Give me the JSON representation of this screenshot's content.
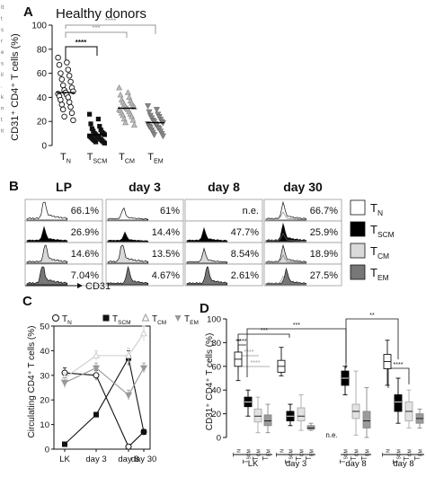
{
  "margin_text": [
    "It",
    "t",
    "s",
    "r",
    "e",
    "s",
    "il",
    ".",
    "k",
    "n",
    "t",
    "it"
  ],
  "panelA": {
    "letter": "A",
    "title": "Healthy donors",
    "ylabel": "CD31⁺ CD4⁺ T cells (%)",
    "yticks": [
      "0",
      "20",
      "40",
      "60",
      "80",
      "100"
    ],
    "sig": [
      {
        "label": "****",
        "color": "#000000"
      },
      {
        "label": "***",
        "color": "#999999"
      },
      {
        "label": "****",
        "color": "#999999"
      }
    ],
    "xlabels": [
      {
        "main": "T",
        "sub": "N"
      },
      {
        "main": "T",
        "sub": "SCM"
      },
      {
        "main": "T",
        "sub": "CM"
      },
      {
        "main": "T",
        "sub": "EM"
      }
    ]
  },
  "panelB": {
    "letter": "B",
    "columns": [
      "LP",
      "day 3",
      "day 8",
      "day 30"
    ],
    "percentages": [
      [
        "66.1%",
        "61%",
        "n.e.",
        "66.7%"
      ],
      [
        "26.9%",
        "14.4%",
        "47.7%",
        "25.9%"
      ],
      [
        "14.6%",
        "13.5%",
        "8.54%",
        "18.9%"
      ],
      [
        "7.04%",
        "4.67%",
        "2.61%",
        "27.5%"
      ]
    ],
    "xlabel": "CD31",
    "legend": [
      {
        "main": "T",
        "sub": "N",
        "fill": "#ffffff"
      },
      {
        "main": "T",
        "sub": "SCM",
        "fill": "#000000"
      },
      {
        "main": "T",
        "sub": "CM",
        "fill": "#d9d9d9"
      },
      {
        "main": "T",
        "sub": "EM",
        "fill": "#777777"
      }
    ]
  },
  "panelC": {
    "letter": "C",
    "ylabel": "Circulating CD4⁺ T cells (%)",
    "yticks": [
      "0",
      "10",
      "20",
      "30",
      "40",
      "50"
    ],
    "xticks": [
      "LK",
      "day 3",
      "day 8",
      "day 30"
    ],
    "legend": [
      {
        "main": "T",
        "sub": "N"
      },
      {
        "main": "T",
        "sub": "SCM"
      },
      {
        "main": "T",
        "sub": "CM"
      },
      {
        "main": "T",
        "sub": "EM"
      }
    ]
  },
  "panelD": {
    "letter": "D",
    "ylabel": "CD31⁺ CD4⁺ T cells (%)",
    "yticks": [
      "0",
      "20",
      "40",
      "60",
      "80",
      "100"
    ],
    "groups": [
      "LK",
      "day 3",
      "day 8",
      "day 8"
    ],
    "ne_label": "n.e.",
    "sig_labels": [
      "****",
      "****",
      "****",
      "***",
      "***",
      "**",
      "****"
    ],
    "sub_labels": [
      {
        "main": "T",
        "sub": "N"
      },
      {
        "main": "T",
        "sub": "SCM"
      },
      {
        "main": "T",
        "sub": "CM"
      },
      {
        "main": "T",
        "sub": "EM"
      }
    ]
  },
  "chart_data": [
    {
      "type": "scatter",
      "title": "Healthy donors",
      "ylabel": "CD31⁺ CD4⁺ T cells (%)",
      "categories": [
        "TN",
        "TSCM",
        "TCM",
        "TEM"
      ],
      "ylim": [
        0,
        100
      ],
      "means": [
        44,
        9,
        31,
        19
      ],
      "series": [
        {
          "name": "TN",
          "values": [
            73,
            69,
            67,
            63,
            60,
            58,
            55,
            53,
            50,
            48,
            46,
            45,
            44,
            43,
            42,
            41,
            40,
            38,
            36,
            34,
            32,
            30,
            27,
            24,
            21
          ]
        },
        {
          "name": "TSCM",
          "values": [
            26,
            22,
            18,
            16,
            14,
            13,
            12,
            11,
            10,
            10,
            9,
            9,
            8,
            8,
            7,
            7,
            6,
            6,
            5,
            5,
            4,
            4,
            3,
            3,
            2
          ]
        },
        {
          "name": "TCM",
          "values": [
            48,
            44,
            42,
            40,
            38,
            37,
            36,
            35,
            34,
            33,
            32,
            32,
            31,
            30,
            30,
            29,
            28,
            27,
            26,
            25,
            24,
            22,
            21,
            19,
            17
          ]
        },
        {
          "name": "TEM",
          "values": [
            33,
            30,
            28,
            26,
            25,
            24,
            23,
            22,
            21,
            20,
            20,
            19,
            18,
            18,
            17,
            16,
            15,
            15,
            14,
            13,
            12,
            11,
            10,
            9,
            8
          ]
        }
      ]
    },
    {
      "type": "line",
      "ylabel": "Circulating CD4⁺ T cells (%)",
      "categories": [
        "LK",
        "day 3",
        "day 8",
        "day 30"
      ],
      "ylim": [
        0,
        50
      ],
      "series": [
        {
          "name": "TN",
          "values": [
            31,
            30,
            1,
            7
          ],
          "errors": [
            2,
            2,
            1,
            1
          ]
        },
        {
          "name": "TSCM",
          "values": [
            2,
            14,
            37,
            7
          ],
          "errors": [
            0.5,
            1,
            3,
            1
          ]
        },
        {
          "name": "TCM",
          "values": [
            29,
            38,
            38,
            47
          ],
          "errors": [
            2,
            2,
            3,
            3
          ]
        },
        {
          "name": "TEM",
          "values": [
            27,
            33,
            22,
            33
          ],
          "errors": [
            2,
            2,
            2,
            2
          ]
        }
      ]
    },
    {
      "type": "box",
      "ylabel": "CD31⁺ CD4⁺ T cells (%)",
      "ylim": [
        0,
        100
      ],
      "groups": [
        "LK",
        "day 3",
        "day 8",
        "day 8"
      ],
      "boxes": [
        {
          "group": 0,
          "subset": "TN",
          "stats": [
            48,
            60,
            66,
            72,
            82
          ]
        },
        {
          "group": 0,
          "subset": "TSCM",
          "stats": [
            18,
            26,
            30,
            34,
            40
          ]
        },
        {
          "group": 0,
          "subset": "TCM",
          "stats": [
            4,
            13,
            18,
            24,
            34
          ]
        },
        {
          "group": 0,
          "subset": "TEM",
          "stats": [
            4,
            10,
            14,
            19,
            28
          ]
        },
        {
          "group": 1,
          "subset": "TN",
          "stats": [
            52,
            55,
            60,
            65,
            76
          ]
        },
        {
          "group": 1,
          "subset": "TSCM",
          "stats": [
            10,
            14,
            18,
            22,
            28
          ]
        },
        {
          "group": 1,
          "subset": "TCM",
          "stats": [
            6,
            14,
            18,
            25,
            36
          ]
        },
        {
          "group": 1,
          "subset": "TEM",
          "stats": [
            6,
            7,
            8,
            10,
            12
          ]
        },
        {
          "group": 2,
          "subset": "TSCM",
          "stats": [
            36,
            44,
            50,
            56,
            60
          ]
        },
        {
          "group": 2,
          "subset": "TCM",
          "stats": [
            2,
            16,
            22,
            28,
            56
          ]
        },
        {
          "group": 2,
          "subset": "TEM",
          "stats": [
            0,
            8,
            14,
            22,
            42
          ]
        },
        {
          "group": 3,
          "subset": "TN",
          "stats": [
            44,
            58,
            64,
            70,
            82
          ]
        },
        {
          "group": 3,
          "subset": "TSCM",
          "stats": [
            12,
            22,
            30,
            36,
            50
          ]
        },
        {
          "group": 3,
          "subset": "TCM",
          "stats": [
            8,
            14,
            22,
            30,
            40
          ]
        },
        {
          "group": 3,
          "subset": "TEM",
          "stats": [
            8,
            12,
            16,
            20,
            24
          ]
        }
      ]
    }
  ]
}
